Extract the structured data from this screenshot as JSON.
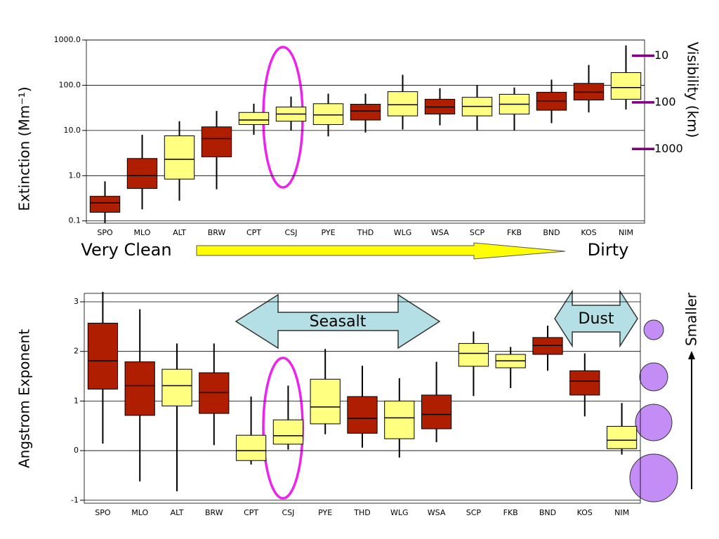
{
  "chart_data": [
    {
      "type": "box",
      "ylabel": "Extinction (Mm⁻¹)",
      "y2label": "Visibility (km)",
      "categories": [
        "SPO",
        "MLO",
        "ALT",
        "BRW",
        "CPT",
        "CSJ",
        "PYE",
        "THD",
        "WLG",
        "WSA",
        "SCP",
        "FKB",
        "BND",
        "KOS",
        "NIM"
      ],
      "colors": [
        "#b01e00",
        "#b01e00",
        "#ffff80",
        "#b01e00",
        "#ffff80",
        "#ffff80",
        "#ffff80",
        "#b01e00",
        "#ffff80",
        "#b01e00",
        "#ffff80",
        "#ffff80",
        "#b01e00",
        "#b01e00",
        "#ffff80"
      ],
      "low": [
        0.09,
        0.18,
        0.28,
        0.5,
        8,
        10,
        7.4,
        9,
        10.5,
        13,
        10,
        10,
        14.5,
        25,
        29
      ],
      "q1": [
        0.155,
        0.52,
        0.84,
        2.6,
        13.5,
        16,
        13.5,
        17,
        21,
        23,
        21,
        23,
        28,
        47,
        49
      ],
      "median": [
        0.25,
        1.0,
        2.3,
        6.6,
        17,
        23,
        22,
        27,
        37,
        33,
        34,
        38,
        45,
        70,
        89
      ],
      "q3": [
        0.35,
        2.4,
        7.6,
        12,
        25,
        33,
        39,
        38,
        72,
        49,
        54,
        63,
        70,
        110,
        190
      ],
      "high": [
        0.75,
        8,
        16,
        27,
        39,
        56,
        65,
        65,
        170,
        86,
        100,
        89,
        133,
        280,
        760
      ],
      "log": true,
      "ylim": [
        0.089,
        1000
      ],
      "yticks": [
        0.1,
        {
          "value": 1,
          "label": "1.0"
        },
        {
          "value": 10,
          "label": "10.0"
        },
        {
          "value": 100,
          "label": "100.0"
        },
        {
          "value": 1000,
          "label": "1000.0"
        }
      ],
      "y2lim": [
        39000,
        4.6
      ],
      "y2ticks": [
        10,
        100,
        1000
      ],
      "y2color": "#800080",
      "grid": true,
      "annotations": [
        "Very Clean",
        "Dirty"
      ]
    },
    {
      "type": "box",
      "ylabel": "Angstrom Exponent",
      "categories": [
        "SPO",
        "MLO",
        "ALT",
        "BRW",
        "CPT",
        "CSJ",
        "PYE",
        "THD",
        "WLG",
        "WSA",
        "SCP",
        "FKB",
        "BND",
        "KOS",
        "NIM"
      ],
      "colors": [
        "#b01e00",
        "#b01e00",
        "#ffff80",
        "#b01e00",
        "#ffff80",
        "#ffff80",
        "#ffff80",
        "#b01e00",
        "#ffff80",
        "#b01e00",
        "#ffff80",
        "#ffff80",
        "#b01e00",
        "#b01e00",
        "#ffff80"
      ],
      "low": [
        0.14,
        -0.62,
        -0.82,
        0.11,
        -0.28,
        0.02,
        0.33,
        0.06,
        -0.14,
        0.17,
        1.1,
        1.26,
        1.61,
        0.69,
        -0.08
      ],
      "q1": [
        1.24,
        0.71,
        0.9,
        0.75,
        -0.2,
        0.13,
        0.54,
        0.35,
        0.24,
        0.44,
        1.7,
        1.67,
        1.94,
        1.12,
        0.04
      ],
      "median": [
        1.81,
        1.31,
        1.31,
        1.17,
        0,
        0.3,
        0.88,
        0.65,
        0.66,
        0.73,
        1.96,
        1.81,
        2.12,
        1.4,
        0.21
      ],
      "q3": [
        2.57,
        1.79,
        1.64,
        1.57,
        0.31,
        0.62,
        1.44,
        1.09,
        1.0,
        1.12,
        2.16,
        1.94,
        2.28,
        1.61,
        0.49
      ],
      "high": [
        3.2,
        2.85,
        2.16,
        2.16,
        1.09,
        1.31,
        2.05,
        1.71,
        1.46,
        1.79,
        2.4,
        2.09,
        2.52,
        1.96,
        0.96
      ],
      "log": false,
      "ylim": [
        -1.06,
        3.17
      ],
      "yticks": [
        -1,
        0,
        1,
        2,
        3
      ],
      "grid": true,
      "annotations": [
        "Seasalt",
        "Dust",
        "Smaller"
      ]
    }
  ]
}
